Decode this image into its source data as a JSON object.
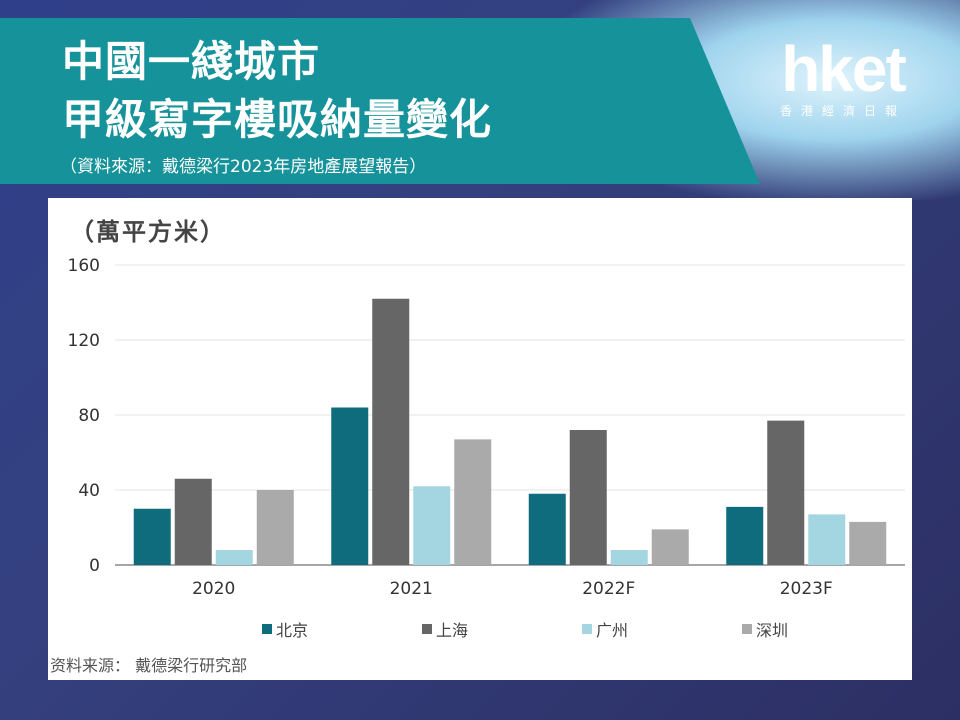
{
  "header": {
    "title_line1": "中國一綫城市",
    "title_line2": "甲級寫字樓吸納量變化",
    "subtitle": "（資料來源：戴德梁行2023年房地產展望報告）"
  },
  "logo": {
    "text": "hket",
    "sub": "香港經濟日報"
  },
  "footer": {
    "source": "资料来源：  戴德梁行研究部"
  },
  "chart_data": {
    "type": "bar",
    "unit_label": "（萬平方米）",
    "categories": [
      "2020",
      "2021",
      "2022F",
      "2023F"
    ],
    "yticks": [
      "0",
      "40",
      "80",
      "120",
      "160"
    ],
    "ylim": [
      0,
      160
    ],
    "grid": true,
    "legend_position": "bottom",
    "series": [
      {
        "name": "北京",
        "color": "#0e6c7c",
        "values": [
          30,
          84,
          38,
          31
        ]
      },
      {
        "name": "上海",
        "color": "#666666",
        "values": [
          46,
          142,
          72,
          77
        ]
      },
      {
        "name": "广州",
        "color": "#a3d6e0",
        "values": [
          8,
          42,
          8,
          27
        ]
      },
      {
        "name": "深圳",
        "color": "#aaaaaa",
        "values": [
          40,
          67,
          19,
          23
        ]
      }
    ]
  }
}
